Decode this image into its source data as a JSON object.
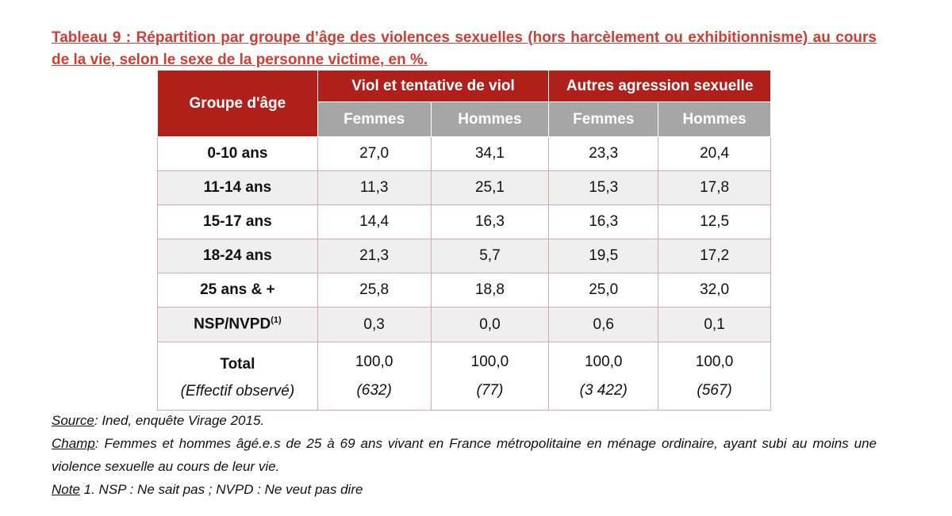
{
  "title": "Tableau 9 : Répartition par groupe d’âge des violences sexuelles (hors harcèlement ou exhibitionnisme) au cours de la vie, selon le sexe de la personne victime, en %.",
  "colors": {
    "title": "#cf3d33",
    "header": "#b0201b",
    "subheader": "#a6a6a6"
  },
  "table": {
    "col_header": "Groupe d'âge",
    "groups": [
      "Viol et tentative de viol",
      "Autres agression sexuelle"
    ],
    "subheaders": [
      "Femmes",
      "Hommes",
      "Femmes",
      "Hommes"
    ],
    "rows": [
      {
        "label": "0-10 ans",
        "values": [
          "27,0",
          "34,1",
          "23,3",
          "20,4"
        ]
      },
      {
        "label": "11-14 ans",
        "values": [
          "11,3",
          "25,1",
          "15,3",
          "17,8"
        ]
      },
      {
        "label": "15-17 ans",
        "values": [
          "14,4",
          "16,3",
          "16,3",
          "12,5"
        ]
      },
      {
        "label": "18-24 ans",
        "values": [
          "21,3",
          "5,7",
          "19,5",
          "17,2"
        ]
      },
      {
        "label": "25 ans & +",
        "values": [
          "25,8",
          "18,8",
          "25,0",
          "32,0"
        ]
      },
      {
        "label": "NSP/NVPD",
        "sup": "(1)",
        "values": [
          "0,3",
          "0,0",
          "0,6",
          "0,1"
        ]
      }
    ],
    "total": {
      "label": "Total",
      "sublabel": "(Effectif observé)",
      "values": [
        "100,0",
        "100,0",
        "100,0",
        "100,0"
      ],
      "counts": [
        "(632)",
        "(77)",
        "(3 422)",
        "(567)"
      ]
    }
  },
  "footer": {
    "source_label": "Source",
    "source": ": Ined, enquête Virage 2015.",
    "champ_label": "Champ",
    "champ": ": Femmes et hommes âgé.e.s de 25 à 69 ans vivant en France métropolitaine en ménage ordinaire, ayant subi au moins une violence sexuelle au cours de leur vie.",
    "note_label": "Note",
    "note": " 1. NSP : Ne sait pas ; NVPD : Ne veut pas dire"
  }
}
